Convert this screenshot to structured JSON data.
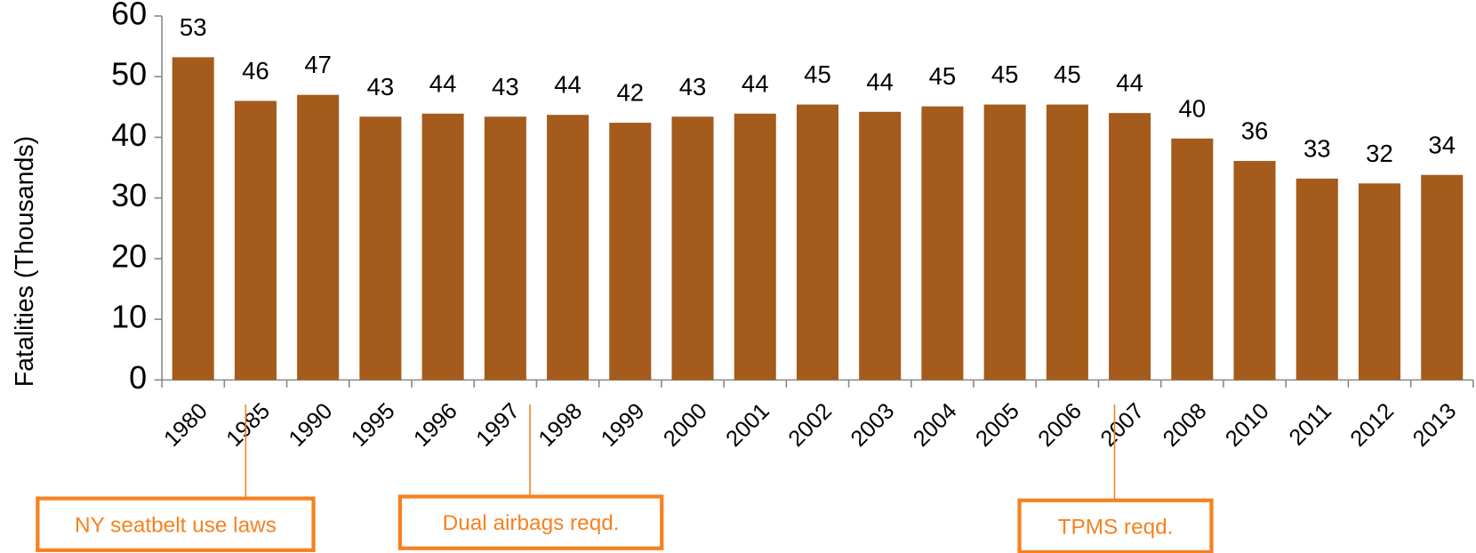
{
  "chart_data": {
    "type": "bar",
    "y_label": "Fatalities (Thousands)",
    "categories": [
      "1980",
      "1985",
      "1990",
      "1995",
      "1996",
      "1997",
      "1998",
      "1999",
      "2000",
      "2001",
      "2002",
      "2003",
      "2004",
      "2005",
      "2006",
      "2007",
      "2008",
      "2010",
      "2011",
      "2012",
      "2013"
    ],
    "values": [
      53.2,
      46.0,
      47.0,
      43.4,
      43.9,
      43.4,
      43.7,
      42.4,
      43.4,
      43.9,
      45.4,
      44.2,
      45.1,
      45.4,
      45.4,
      44.0,
      39.8,
      36.1,
      33.2,
      32.4,
      33.8
    ],
    "value_labels": [
      "53",
      "46",
      "47",
      "43",
      "44",
      "43",
      "44",
      "42",
      "43",
      "44",
      "45",
      "44",
      "45",
      "45",
      "45",
      "44",
      "40",
      "36",
      "33",
      "32",
      "34"
    ],
    "color": "#a55b1b",
    "ylim": [
      0,
      60
    ],
    "yticks": [
      0,
      10,
      20,
      30,
      40,
      50,
      60
    ],
    "grid": false,
    "annotations": [
      "NY seatbelt use laws",
      "Dual airbags reqd.",
      "TPMS reqd."
    ]
  }
}
